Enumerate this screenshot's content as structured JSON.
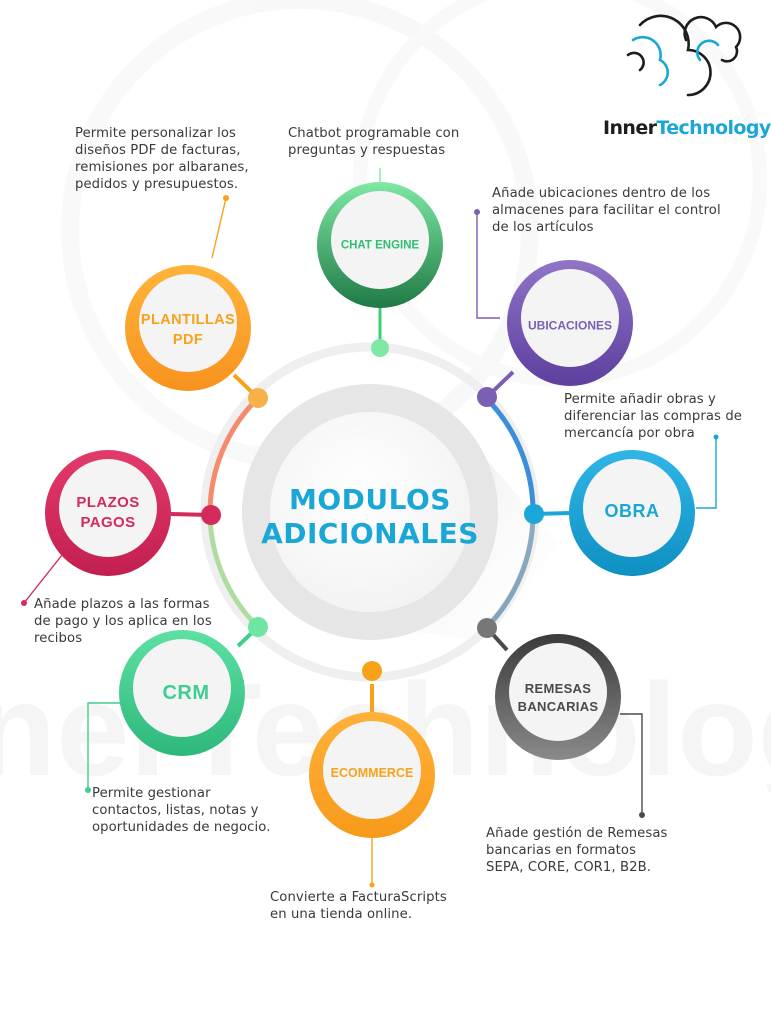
{
  "brand": {
    "name_part1": "Inner",
    "name_part2": "Technology",
    "watermark": "InnerTechnology"
  },
  "center": {
    "title_line1": "MODULOS",
    "title_line2": "ADICIONALES",
    "color": "#1aa7d7"
  },
  "modules": {
    "chat_engine": {
      "label": [
        "CHAT ENGINE"
      ],
      "color": "#2fbf71",
      "description": [
        "Chatbot programable con",
        "preguntas y respuestas"
      ]
    },
    "plantillas_pdf": {
      "label": [
        "PLANTILLAS",
        "PDF"
      ],
      "color": "#f7a21a",
      "description": [
        "Permite personalizar los",
        "diseños PDF de facturas,",
        "remisiones por albaranes,",
        "pedidos y presupuestos."
      ]
    },
    "ubicaciones": {
      "label": [
        "UBICACIONES"
      ],
      "color": "#7b5fb4",
      "description": [
        "Añade ubicaciones dentro de los",
        "almacenes para facilitar el control",
        "de los artículos"
      ]
    },
    "obra": {
      "label": [
        "OBRA"
      ],
      "color": "#1aa7d7",
      "description": [
        "Permite añadir obras y",
        "diferenciar las compras de",
        "mercancía por obra"
      ]
    },
    "plazos_pagos": {
      "label": [
        "PLAZOS",
        "PAGOS"
      ],
      "color": "#d42a5c",
      "description": [
        "Añade plazos a las formas",
        "de pago y los aplica en los",
        "recibos"
      ]
    },
    "crm": {
      "label": [
        "CRM"
      ],
      "color": "#3ecf8e",
      "description": [
        "Permite gestionar",
        "contactos, listas, notas y",
        "oportunidades de negocio."
      ]
    },
    "remesas_bancarias": {
      "label": [
        "REMESAS",
        "BANCARIAS"
      ],
      "color": "#4a4a4a",
      "description": [
        "Añade gestión de Remesas",
        "bancarias en formatos",
        "SEPA, CORE, COR1, B2B."
      ]
    },
    "ecommerce": {
      "label": [
        "ECOMMERCE"
      ],
      "color": "#f7a21a",
      "description": [
        "Convierte a FacturaScripts",
        "en una tienda online."
      ]
    }
  }
}
